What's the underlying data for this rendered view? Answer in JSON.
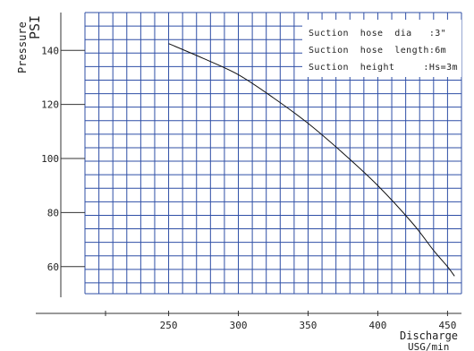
{
  "chart_data": {
    "type": "line",
    "x_axis": {
      "label_line1": "Discharge",
      "label_line2": "USG/min",
      "ticks": [
        {
          "value": 250,
          "label": "250"
        },
        {
          "value": 300,
          "label": "300"
        },
        {
          "value": 350,
          "label": "350"
        },
        {
          "value": 400,
          "label": "400"
        },
        {
          "value": 450,
          "label": "450"
        }
      ]
    },
    "y_axis": {
      "label_line1": "Pressure",
      "label_line2": "PSI",
      "ticks": [
        {
          "value": 60,
          "label": "60"
        },
        {
          "value": 80,
          "label": "80"
        },
        {
          "value": 100,
          "label": "100"
        },
        {
          "value": 120,
          "label": "120"
        },
        {
          "value": 140,
          "label": "140"
        }
      ]
    },
    "xlim": [
      190,
      460
    ],
    "ylim": [
      50,
      154
    ],
    "grid": true,
    "legend_position": "top-right",
    "notes": [
      "Suction  hose  dia   :3\"",
      "Suction  hose  length:6m",
      "Suction  height     :Hs=3m"
    ],
    "series": [
      {
        "x": [
          250,
          275,
          300,
          325,
          350,
          375,
          400,
          425,
          440,
          450,
          455
        ],
        "y": [
          142.5,
          137,
          131,
          122.5,
          113,
          102,
          90,
          76,
          66,
          60,
          56.5
        ]
      }
    ]
  }
}
